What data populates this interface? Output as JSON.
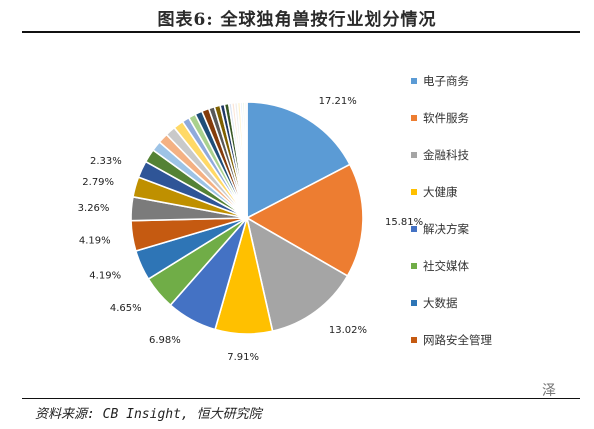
{
  "title": "图表6:   全球独角兽按行业划分情况",
  "source": "资料来源: CB Insight, 恒大研究院",
  "watermark": "泽",
  "chart_data": {
    "type": "pie",
    "title": "图表6:   全球独角兽按行业划分情况",
    "legend_position": "right",
    "series": [
      {
        "name": "电子商务",
        "value": 17.21,
        "color": "#5b9bd5"
      },
      {
        "name": "软件服务",
        "value": 15.81,
        "color": "#ed7d31"
      },
      {
        "name": "金融科技",
        "value": 13.02,
        "color": "#a5a5a5"
      },
      {
        "name": "大健康",
        "value": 7.91,
        "color": "#ffc000"
      },
      {
        "name": "解决方案",
        "value": 6.98,
        "color": "#4472c4"
      },
      {
        "name": "社交媒体",
        "value": 4.65,
        "color": "#70ad47"
      },
      {
        "name": "大数据",
        "value": 4.19,
        "color": "#2e75b6"
      },
      {
        "name": "网路安全管理",
        "value": 4.19,
        "color": "#c55a11"
      },
      {
        "name": "",
        "value": 3.26,
        "color": "#7b7b7b"
      },
      {
        "name": "",
        "value": 2.79,
        "color": "#bf9000"
      },
      {
        "name": "",
        "value": 2.33,
        "color": "#2f5597"
      },
      {
        "name": "",
        "value": 1.86,
        "color": "#548235"
      },
      {
        "name": "",
        "value": 1.4,
        "color": "#9dc3e6"
      },
      {
        "name": "",
        "value": 1.4,
        "color": "#f4b183"
      },
      {
        "name": "",
        "value": 1.4,
        "color": "#c9c9c9"
      },
      {
        "name": "",
        "value": 1.4,
        "color": "#ffd966"
      },
      {
        "name": "",
        "value": 1.0,
        "color": "#8faadc"
      },
      {
        "name": "",
        "value": 1.0,
        "color": "#a9d18e"
      },
      {
        "name": "",
        "value": 1.0,
        "color": "#1f4e79"
      },
      {
        "name": "",
        "value": 1.0,
        "color": "#843c0c"
      },
      {
        "name": "",
        "value": 0.8,
        "color": "#595959"
      },
      {
        "name": "",
        "value": 0.8,
        "color": "#7f6000"
      },
      {
        "name": "",
        "value": 0.6,
        "color": "#203864"
      },
      {
        "name": "",
        "value": 0.6,
        "color": "#385723"
      },
      {
        "name": "",
        "value": 0.4,
        "color": "#dae3f3"
      },
      {
        "name": "",
        "value": 0.4,
        "color": "#fbe5d6"
      },
      {
        "name": "",
        "value": 0.4,
        "color": "#ededed"
      },
      {
        "name": "",
        "value": 0.4,
        "color": "#fff2cc"
      },
      {
        "name": "",
        "value": 0.3,
        "color": "#deebf7"
      },
      {
        "name": "",
        "value": 0.3,
        "color": "#e2f0d9"
      },
      {
        "name": "",
        "value": 0.3,
        "color": "#f2f2f2"
      }
    ],
    "data_labels": [
      {
        "slice": 0,
        "text": "17.21%"
      },
      {
        "slice": 1,
        "text": "15.81%"
      },
      {
        "slice": 2,
        "text": "13.02%"
      },
      {
        "slice": 3,
        "text": "7.91%"
      },
      {
        "slice": 4,
        "text": "6.98%"
      },
      {
        "slice": 5,
        "text": "4.65%"
      },
      {
        "slice": 6,
        "text": "4.19%"
      },
      {
        "slice": 7,
        "text": "4.19%"
      },
      {
        "slice": 8,
        "text": "3.26%"
      },
      {
        "slice": 9,
        "text": "2.79%"
      },
      {
        "slice": 10,
        "text": "2.33%"
      }
    ]
  }
}
